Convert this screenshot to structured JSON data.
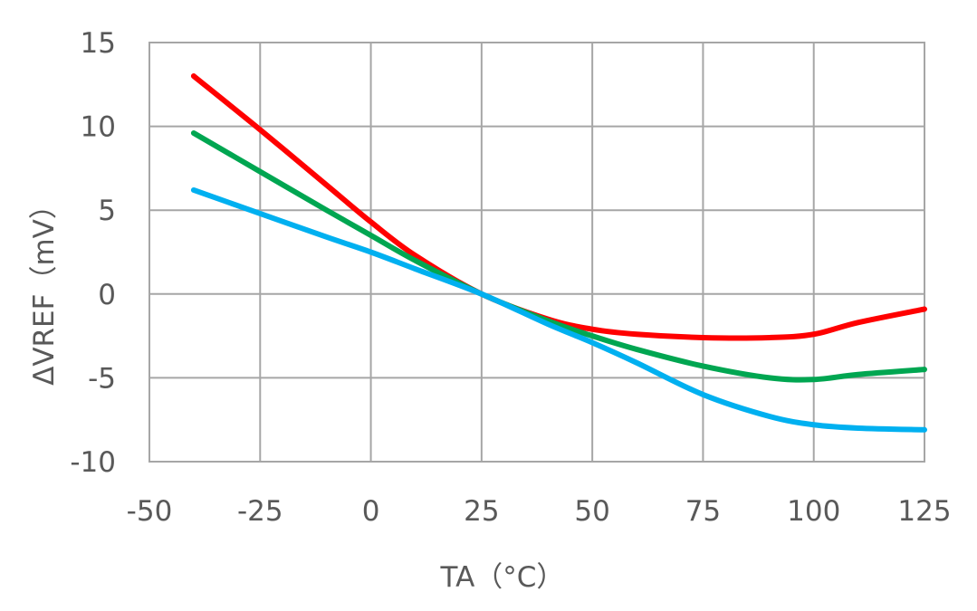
{
  "chart_data": {
    "type": "line",
    "title": "",
    "xlabel": "TA（°C）",
    "ylabel": "ΔVREF（mV）",
    "xlim": [
      -50,
      125
    ],
    "ylim": [
      -10,
      15
    ],
    "xticks": [
      -50,
      -25,
      0,
      25,
      50,
      75,
      100,
      125
    ],
    "yticks": [
      -10,
      -5,
      0,
      5,
      10,
      15
    ],
    "xtick_labels": [
      "-50",
      "-25",
      "0",
      "25",
      "50",
      "75",
      "100",
      "125"
    ],
    "ytick_labels": [
      "-10",
      "-5",
      "0",
      "5",
      "10",
      "15"
    ],
    "grid": true,
    "legend": "none",
    "series": [
      {
        "color": "#ff0000",
        "x": [
          -40,
          -25,
          -10,
          0,
          10,
          25,
          40,
          50,
          60,
          75,
          90,
          100,
          110,
          125
        ],
        "y": [
          13.0,
          9.8,
          6.5,
          4.3,
          2.3,
          0.0,
          -1.5,
          -2.1,
          -2.4,
          -2.6,
          -2.6,
          -2.4,
          -1.7,
          -0.9
        ]
      },
      {
        "color": "#00a651",
        "x": [
          -40,
          -25,
          -10,
          0,
          10,
          25,
          40,
          50,
          60,
          75,
          90,
          100,
          110,
          125
        ],
        "y": [
          9.6,
          7.3,
          5.0,
          3.5,
          2.0,
          0.0,
          -1.6,
          -2.5,
          -3.3,
          -4.3,
          -5.0,
          -5.1,
          -4.8,
          -4.5
        ]
      },
      {
        "color": "#00b0f0",
        "x": [
          -40,
          -25,
          -10,
          0,
          10,
          25,
          40,
          50,
          60,
          75,
          90,
          100,
          110,
          125
        ],
        "y": [
          6.2,
          4.8,
          3.4,
          2.5,
          1.5,
          0.0,
          -1.8,
          -2.9,
          -4.1,
          -6.0,
          -7.3,
          -7.8,
          -8.0,
          -8.1
        ]
      }
    ]
  }
}
